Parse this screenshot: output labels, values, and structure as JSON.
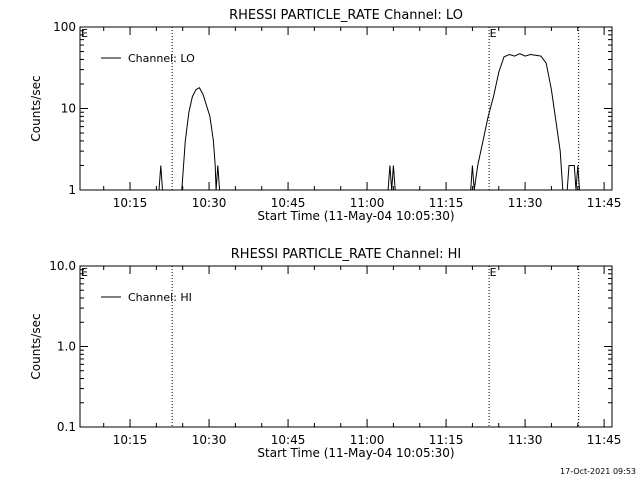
{
  "footer_timestamp": "17-Oct-2021 09:53",
  "chart_data": [
    {
      "type": "line",
      "title": "RHESSI PARTICLE_RATE Channel: LO",
      "xlabel": "Start Time (11-May-04 10:05:30)",
      "ylabel": "Counts/sec",
      "y_scale": "log",
      "ylim": [
        1,
        100
      ],
      "y_ticks": [
        {
          "value": 1,
          "label": "1"
        },
        {
          "value": 10,
          "label": "10"
        },
        {
          "value": 100,
          "label": "100"
        }
      ],
      "xlim": [
        "10:05:30",
        "11:46:30"
      ],
      "x_ticks": [
        "10:15",
        "10:30",
        "10:45",
        "11:00",
        "11:15",
        "11:30",
        "11:45"
      ],
      "legend": {
        "position": "top-left",
        "entries": [
          "Channel: LO"
        ]
      },
      "markers": [
        {
          "time": "10:23:00",
          "label": ""
        },
        {
          "time": "11:23:10",
          "label": "E"
        },
        {
          "time": "11:40:10",
          "label": ""
        }
      ],
      "left_edge_label": "E",
      "series": [
        {
          "name": "Channel: LO",
          "points": [
            [
              "10:05:30",
              1
            ],
            [
              "10:20:30",
              1
            ],
            [
              "10:20:50",
              2
            ],
            [
              "10:21:10",
              1
            ],
            [
              "10:24:50",
              1
            ],
            [
              "10:25:30",
              4
            ],
            [
              "10:26:10",
              9
            ],
            [
              "10:26:50",
              14
            ],
            [
              "10:27:30",
              17
            ],
            [
              "10:28:10",
              18
            ],
            [
              "10:28:50",
              15
            ],
            [
              "10:29:30",
              11
            ],
            [
              "10:30:10",
              8
            ],
            [
              "10:30:50",
              4
            ],
            [
              "10:31:10",
              2
            ],
            [
              "10:31:20",
              1
            ],
            [
              "10:31:40",
              2
            ],
            [
              "10:32:00",
              1
            ],
            [
              "11:04:00",
              1
            ],
            [
              "11:04:20",
              2
            ],
            [
              "11:04:40",
              1
            ],
            [
              "11:05:00",
              2
            ],
            [
              "11:05:20",
              1
            ],
            [
              "11:19:40",
              1
            ],
            [
              "11:20:00",
              2
            ],
            [
              "11:20:20",
              1
            ],
            [
              "11:21:00",
              2
            ],
            [
              "11:22:00",
              4
            ],
            [
              "11:23:00",
              8
            ],
            [
              "11:24:00",
              14
            ],
            [
              "11:25:00",
              28
            ],
            [
              "11:26:00",
              43
            ],
            [
              "11:27:00",
              46
            ],
            [
              "11:28:00",
              44
            ],
            [
              "11:29:00",
              47
            ],
            [
              "11:30:00",
              44
            ],
            [
              "11:31:00",
              46
            ],
            [
              "11:32:00",
              45
            ],
            [
              "11:33:00",
              44
            ],
            [
              "11:34:00",
              36
            ],
            [
              "11:35:00",
              17
            ],
            [
              "11:36:00",
              6
            ],
            [
              "11:36:40",
              3
            ],
            [
              "11:37:10",
              1
            ],
            [
              "11:38:00",
              1
            ],
            [
              "11:38:20",
              2
            ],
            [
              "11:39:20",
              2
            ],
            [
              "11:39:40",
              1
            ],
            [
              "11:40:00",
              2
            ],
            [
              "11:40:20",
              1
            ],
            [
              "11:46:30",
              1
            ]
          ]
        }
      ]
    },
    {
      "type": "line",
      "title": "RHESSI PARTICLE_RATE Channel: HI",
      "xlabel": "Start Time (11-May-04 10:05:30)",
      "ylabel": "Counts/sec",
      "y_scale": "log",
      "ylim": [
        0.1,
        10
      ],
      "y_ticks": [
        {
          "value": 0.1,
          "label": "0.1"
        },
        {
          "value": 1,
          "label": "1.0"
        },
        {
          "value": 10,
          "label": "10.0"
        }
      ],
      "xlim": [
        "10:05:30",
        "11:46:30"
      ],
      "x_ticks": [
        "10:15",
        "10:30",
        "10:45",
        "11:00",
        "11:15",
        "11:30",
        "11:45"
      ],
      "legend": {
        "position": "top-left",
        "entries": [
          "Channel: HI"
        ]
      },
      "markers": [
        {
          "time": "10:23:00",
          "label": ""
        },
        {
          "time": "11:23:10",
          "label": "E"
        },
        {
          "time": "11:40:10",
          "label": ""
        }
      ],
      "left_edge_label": "E",
      "series": [
        {
          "name": "Channel: HI",
          "points": []
        }
      ]
    }
  ]
}
